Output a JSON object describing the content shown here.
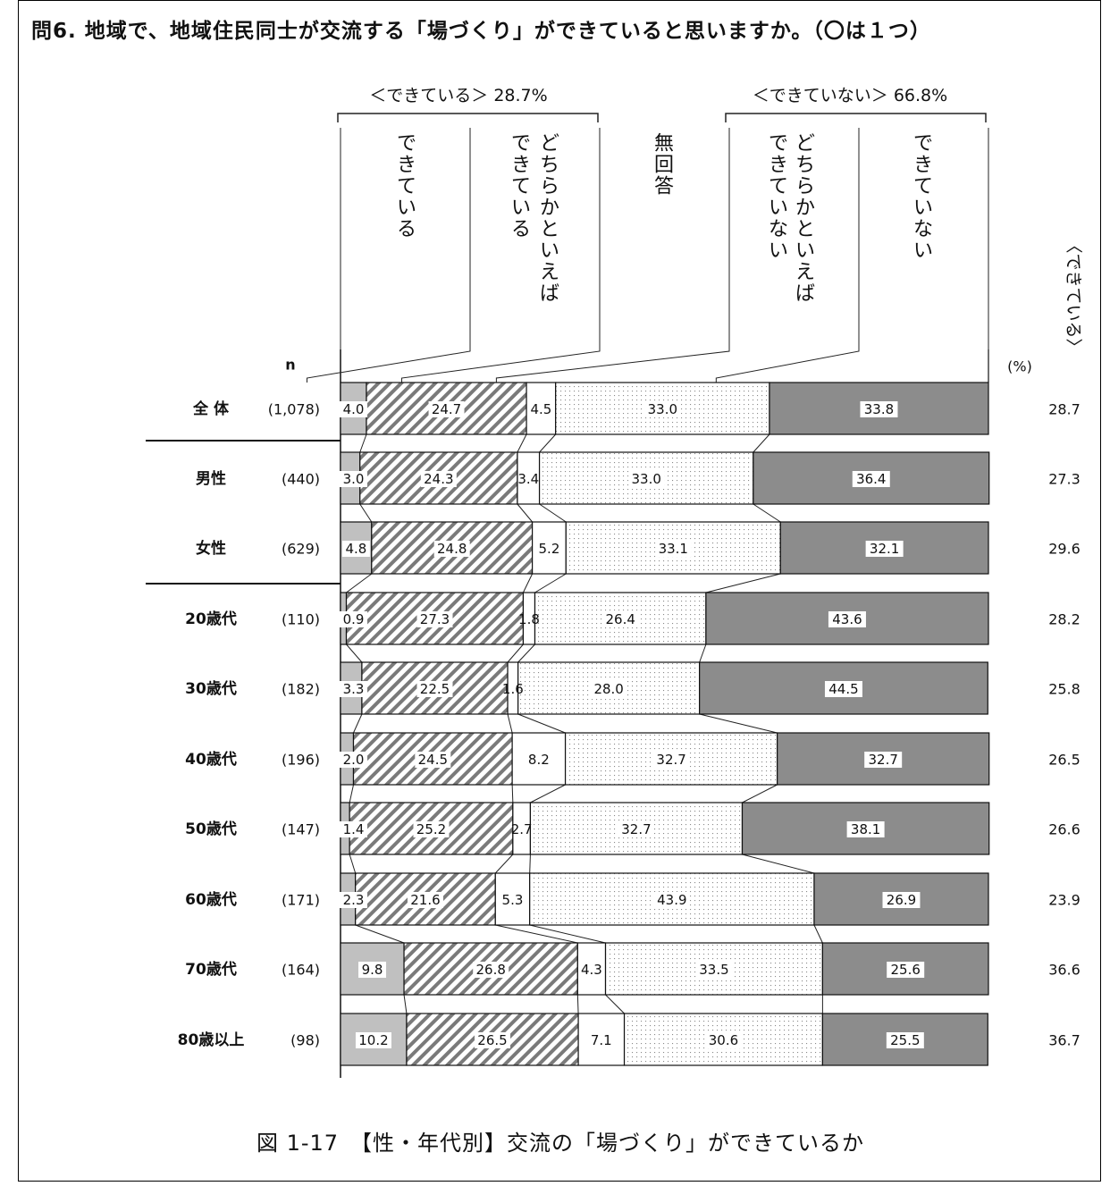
{
  "question": "問6. 地域で、地域住民同士が交流する「場づくり」ができていると思いますか。（〇は１つ）",
  "caption": "図 1-17　【性・年代別】交流の「場づくり」ができているか",
  "groups": {
    "positive": "＜できている＞ 28.7%",
    "negative": "＜できていない＞ 66.8%"
  },
  "n_header": "n",
  "percent_unit": "(%)",
  "right_header": "〈できている〉",
  "colors": {
    "s1": "#c0c0c0",
    "s2_hatch": "#7a7a7a",
    "s3": "#ffffff",
    "s4_dot": "#8a8a8a",
    "s5": "#8c8c8c"
  },
  "chart_data": {
    "type": "bar",
    "stacked": true,
    "orientation": "horizontal",
    "xlim": [
      0,
      100
    ],
    "series": [
      {
        "name": "できている",
        "values": [
          4.0,
          3.0,
          4.8,
          0.9,
          3.3,
          2.0,
          1.4,
          2.3,
          9.8,
          10.2
        ]
      },
      {
        "name": "どちらかといえばできている",
        "values": [
          24.7,
          24.3,
          24.8,
          27.3,
          22.5,
          24.5,
          25.2,
          21.6,
          26.8,
          26.5
        ]
      },
      {
        "name": "無回答",
        "values": [
          4.5,
          3.4,
          5.2,
          1.8,
          1.6,
          8.2,
          2.7,
          5.3,
          4.3,
          7.1
        ]
      },
      {
        "name": "どちらかといえばできていない",
        "values": [
          33.0,
          33.0,
          33.1,
          26.4,
          28.0,
          32.7,
          32.7,
          43.9,
          33.5,
          30.6
        ]
      },
      {
        "name": "できていない",
        "values": [
          33.8,
          36.4,
          32.1,
          43.6,
          44.5,
          32.7,
          38.1,
          26.9,
          25.6,
          25.5
        ]
      }
    ],
    "categories": [
      {
        "label": "全 体",
        "n": "(1,078)",
        "total": "28.7"
      },
      {
        "label": "男性",
        "n": "(440)",
        "total": "27.3"
      },
      {
        "label": "女性",
        "n": "(629)",
        "total": "29.6"
      },
      {
        "label": "20歳代",
        "n": "(110)",
        "total": "28.2"
      },
      {
        "label": "30歳代",
        "n": "(182)",
        "total": "25.8"
      },
      {
        "label": "40歳代",
        "n": "(196)",
        "total": "26.5"
      },
      {
        "label": "50歳代",
        "n": "(147)",
        "total": "26.6"
      },
      {
        "label": "60歳代",
        "n": "(171)",
        "total": "23.9"
      },
      {
        "label": "70歳代",
        "n": "(164)",
        "total": "36.6"
      },
      {
        "label": "80歳以上",
        "n": "(98)",
        "total": "36.7"
      }
    ]
  }
}
